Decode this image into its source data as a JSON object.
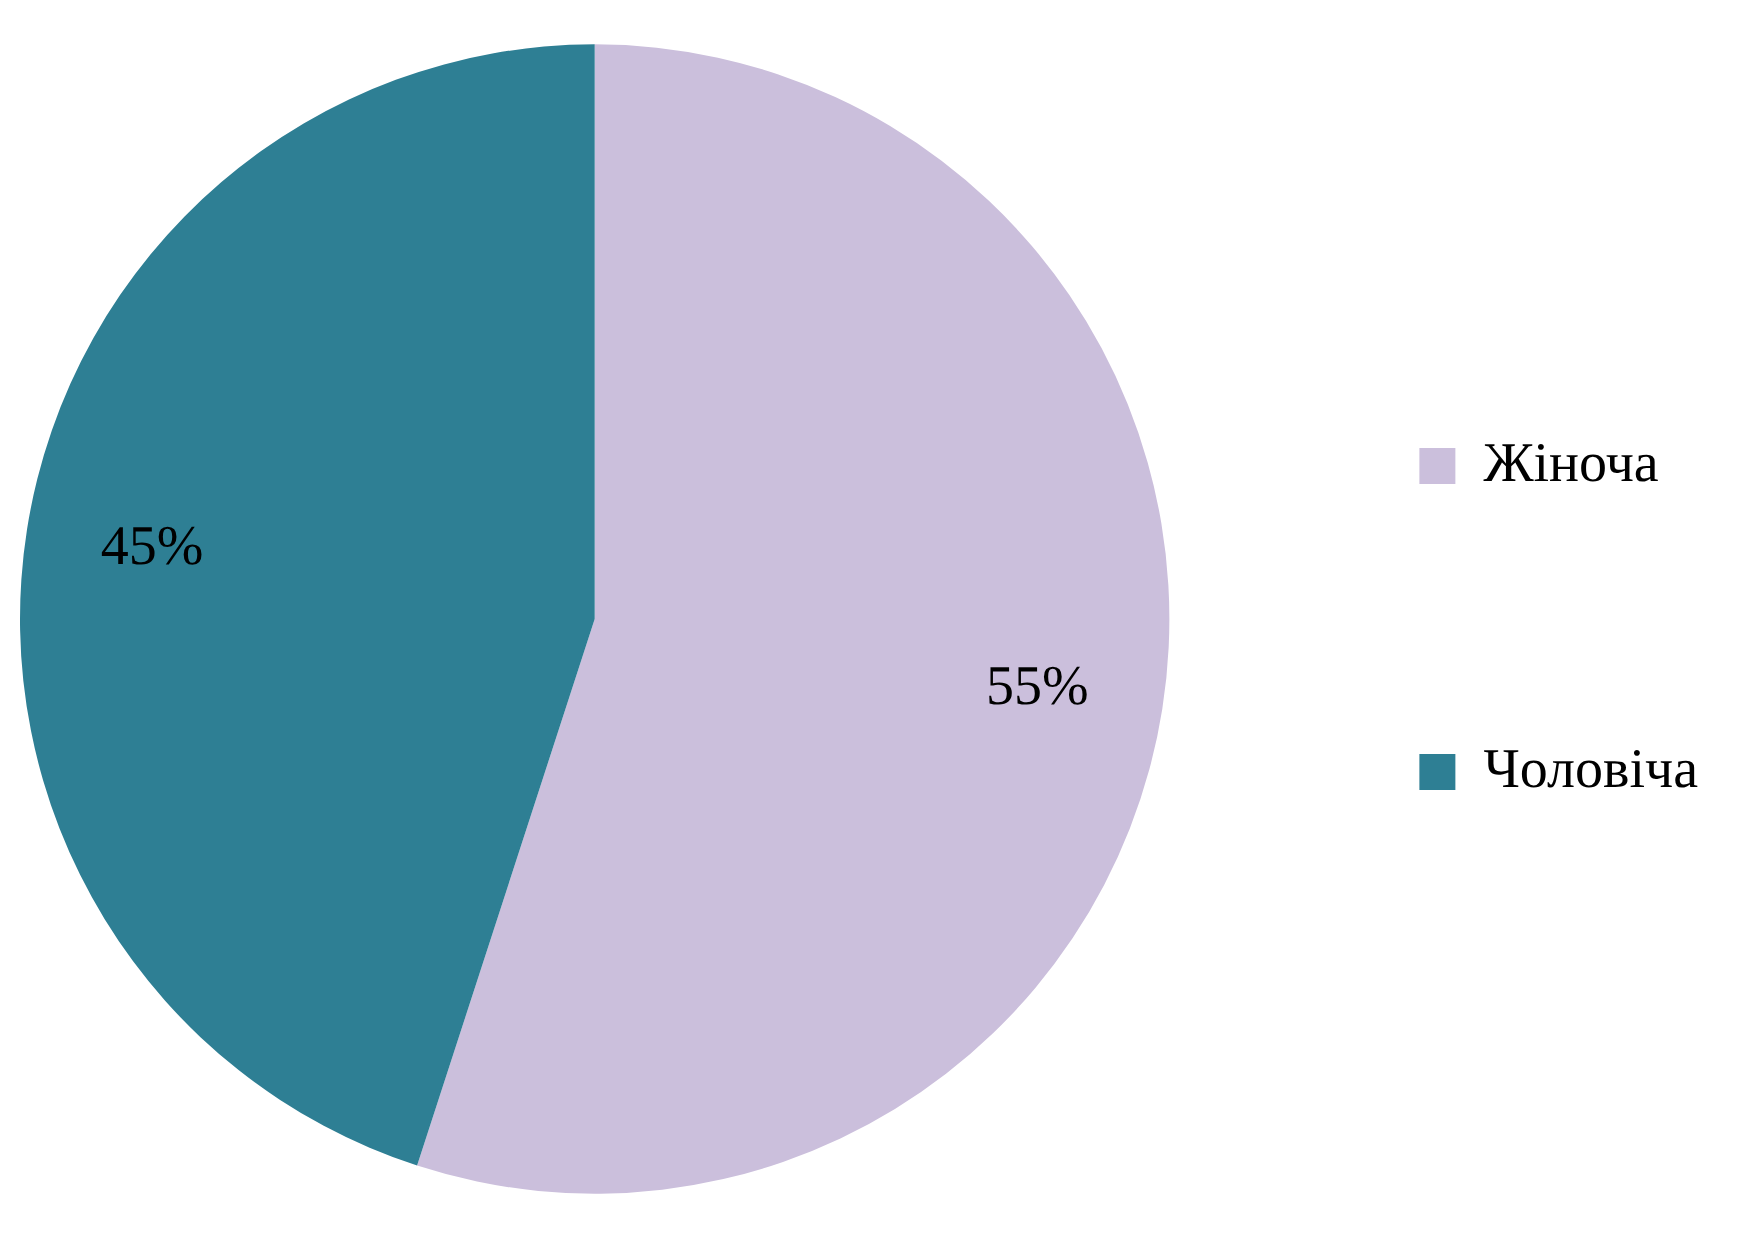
{
  "chart_data": {
    "type": "pie",
    "categories": [
      "Жіноча",
      "Чоловіча"
    ],
    "values": [
      55,
      45
    ],
    "colors": [
      "#cbbfdc",
      "#2e7f94"
    ],
    "value_labels": [
      "55%",
      "45%"
    ],
    "legend": "right"
  }
}
